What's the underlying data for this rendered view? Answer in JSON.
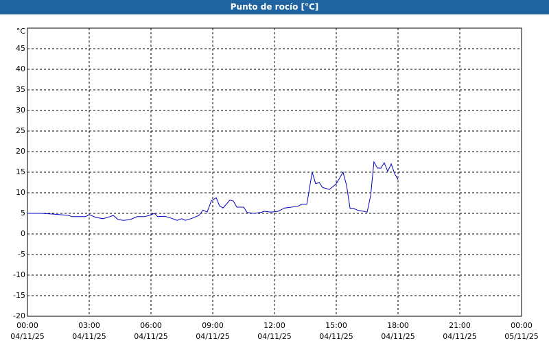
{
  "chart_data": {
    "type": "line",
    "title": "Punto de rocío [°C]",
    "y_unit": "°C",
    "x": [
      0,
      0.67,
      1.33,
      2,
      2.17,
      2.83,
      3,
      3.33,
      3.67,
      4,
      4.17,
      4.4,
      4.67,
      5,
      5.33,
      5.67,
      5.93,
      6.17,
      6.33,
      6.67,
      7,
      7.27,
      7.5,
      7.67,
      8,
      8.33,
      8.53,
      8.73,
      8.93,
      9.17,
      9.33,
      9.5,
      9.83,
      10,
      10.17,
      10.5,
      10.67,
      11,
      11.33,
      11.5,
      11.83,
      12.17,
      12.5,
      12.83,
      13.17,
      13.33,
      13.57,
      13.83,
      14,
      14.17,
      14.33,
      14.67,
      15,
      15.33,
      15.5,
      15.67,
      15.83,
      16.07,
      16.33,
      16.5,
      16.67,
      16.83,
      17,
      17.17,
      17.33,
      17.5,
      17.67,
      17.83,
      18
    ],
    "series": [
      {
        "color": "#0000c0",
        "values": [
          5.0,
          5.0,
          4.8,
          4.5,
          4.2,
          4.2,
          4.7,
          4.0,
          3.7,
          4.2,
          4.5,
          3.5,
          3.3,
          3.5,
          4.2,
          4.2,
          4.5,
          5.0,
          4.2,
          4.3,
          3.8,
          3.3,
          3.7,
          3.3,
          3.8,
          4.5,
          5.8,
          5.3,
          8.0,
          8.8,
          6.8,
          6.3,
          8.2,
          8.0,
          6.5,
          6.5,
          5.2,
          5.0,
          5.2,
          5.5,
          5.3,
          5.5,
          6.3,
          6.5,
          6.8,
          7.2,
          7.2,
          15.0,
          12.2,
          12.5,
          11.3,
          10.8,
          12.2,
          15.0,
          11.8,
          6.2,
          6.2,
          5.7,
          5.5,
          5.3,
          9.3,
          17.5,
          16.0,
          16.0,
          17.3,
          15.2,
          17.0,
          14.7,
          13.2
        ]
      }
    ],
    "xlim": [
      0,
      24
    ],
    "xticks": [
      {
        "value": 0,
        "label": "00:00\n04/11/25"
      },
      {
        "value": 3,
        "label": "03:00\n04/11/25"
      },
      {
        "value": 6,
        "label": "06:00\n04/11/25"
      },
      {
        "value": 9,
        "label": "09:00\n04/11/25"
      },
      {
        "value": 12,
        "label": "12:00\n04/11/25"
      },
      {
        "value": 15,
        "label": "15:00\n04/11/25"
      },
      {
        "value": 18,
        "label": "18:00\n04/11/25"
      },
      {
        "value": 21,
        "label": "21:00\n04/11/25"
      },
      {
        "value": 24,
        "label": "00:00\n05/11/25"
      }
    ],
    "ylim": [
      -20,
      50
    ],
    "yticks": [
      -20,
      -15,
      -10,
      -5,
      0,
      5,
      10,
      15,
      20,
      25,
      30,
      35,
      40,
      45
    ],
    "grid": true
  }
}
